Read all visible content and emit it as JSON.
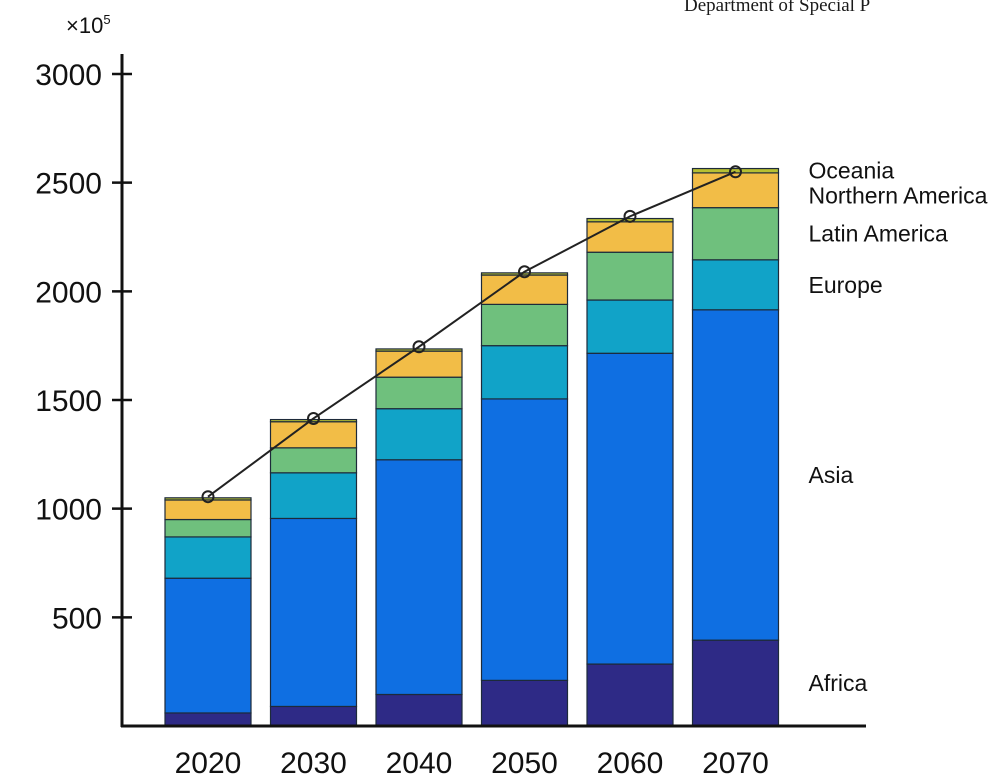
{
  "header": {
    "partial_text": "Department of Special P"
  },
  "axis_scale": {
    "base": "×10",
    "exponent": "5"
  },
  "chart_data": {
    "type": "bar",
    "stacked": true,
    "categories": [
      "2020",
      "2030",
      "2040",
      "2050",
      "2060",
      "2070"
    ],
    "series": [
      {
        "name": "Africa",
        "color": "#2e2a86",
        "values": [
          60,
          90,
          145,
          210,
          285,
          395
        ]
      },
      {
        "name": "Asia",
        "color": "#0f6fe2",
        "values": [
          620,
          865,
          1080,
          1295,
          1430,
          1520
        ]
      },
      {
        "name": "Europe",
        "color": "#11a3c8",
        "values": [
          190,
          210,
          235,
          245,
          245,
          230
        ]
      },
      {
        "name": "Latin America",
        "color": "#6fc07d",
        "values": [
          80,
          115,
          145,
          190,
          220,
          240
        ]
      },
      {
        "name": "Northern America",
        "color": "#f2bd47",
        "values": [
          90,
          120,
          120,
          135,
          140,
          160
        ]
      },
      {
        "name": "Oceania",
        "color": "#b7c032",
        "values": [
          10,
          10,
          10,
          10,
          15,
          20
        ]
      }
    ],
    "totals_line": {
      "values": [
        1055,
        1415,
        1745,
        2090,
        2345,
        2550
      ],
      "color": "#222222"
    },
    "yticks": [
      500,
      1000,
      1500,
      2000,
      2500,
      3000
    ],
    "ylim": [
      0,
      3000
    ],
    "grid": false,
    "legend_placement": "right, labels aligned to top bar segments"
  }
}
